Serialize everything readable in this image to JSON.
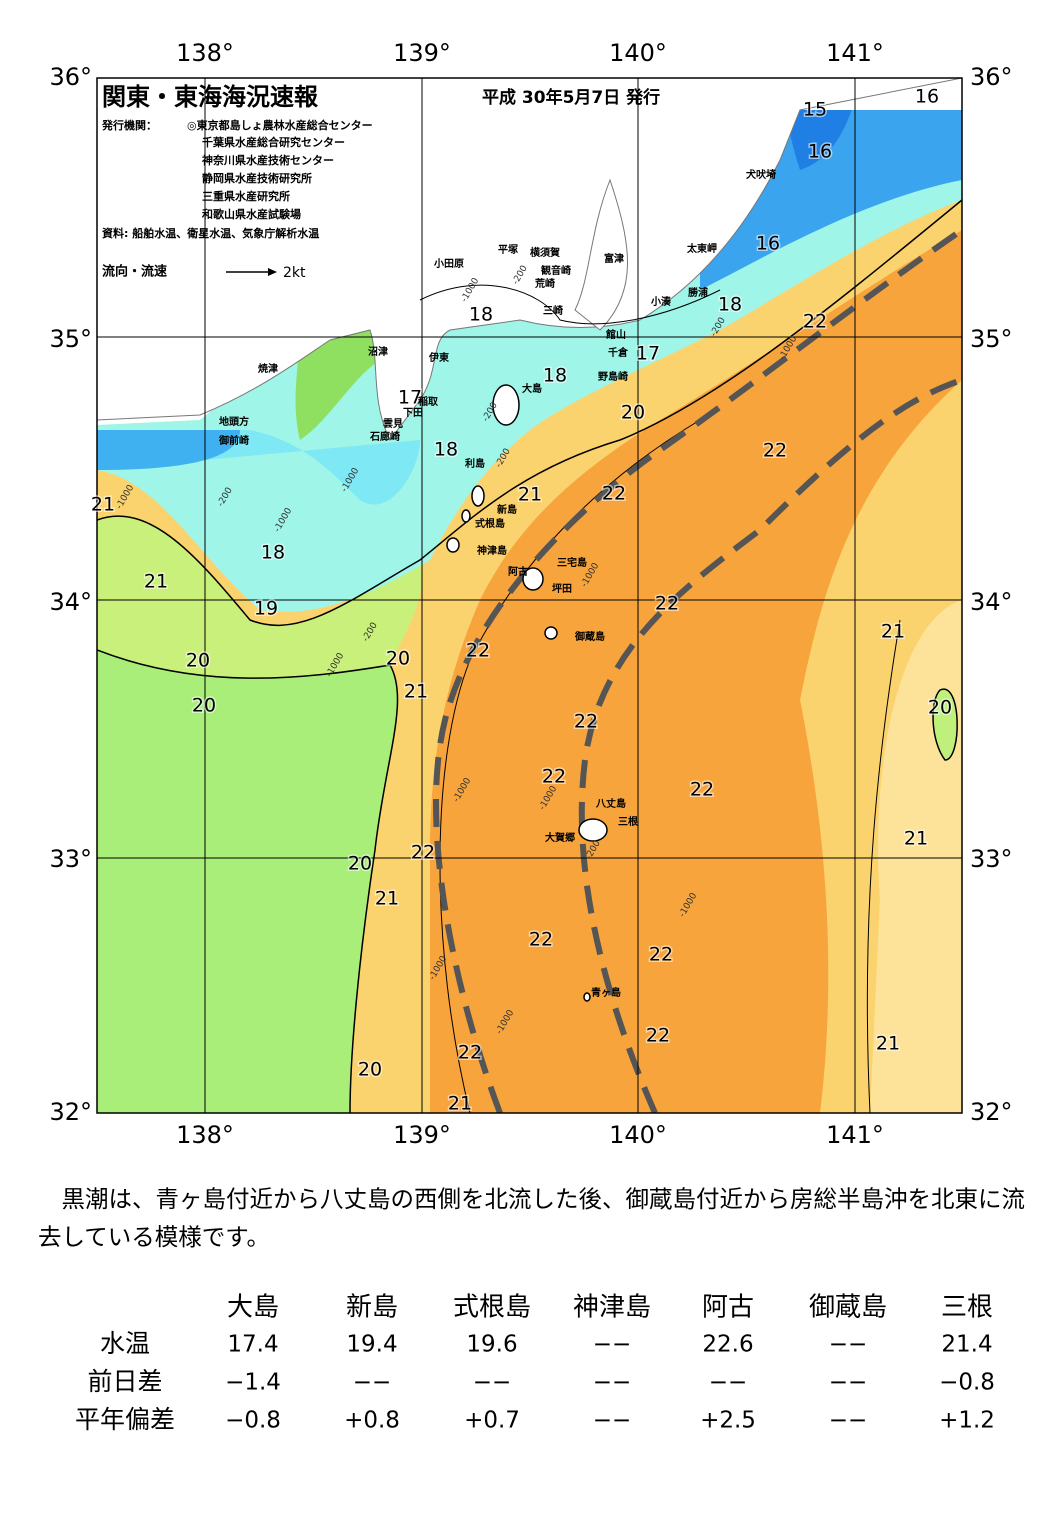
{
  "header": {
    "title": "関東・東海海況速報",
    "date": "平成 30年5月7日 発行",
    "issuer_label": "発行機関：",
    "issuers": [
      "◎東京都島しょ農林水産総合センター",
      "千葉県水産総合研究センター",
      "神奈川県水産技術センター",
      "静岡県水産技術研究所",
      "三重県水産研究所",
      "和歌山県水産試験場"
    ],
    "source": "資料: 船舶水温、衛星水温、気象庁解析水温",
    "legend": "流向・流速",
    "legend_scale": "2kt"
  },
  "map": {
    "lon_labels": [
      "138°",
      "139°",
      "140°",
      "141°"
    ],
    "lat_labels": [
      "36°",
      "35°",
      "34°",
      "33°",
      "32°"
    ],
    "places": [
      "小田原",
      "平塚",
      "横須賀",
      "富津",
      "観音崎",
      "荒崎",
      "三崎",
      "館山",
      "千倉",
      "野島崎",
      "太東岬",
      "勝浦",
      "小湊",
      "犬吠埼",
      "沼津",
      "伊東",
      "焼津",
      "稲取",
      "下田",
      "雲見",
      "石廊崎",
      "地頭方",
      "御前崎",
      "大島",
      "利島",
      "新島",
      "式根島",
      "神津島",
      "三宅島",
      "阿古",
      "坪田",
      "御蔵島",
      "八丈島",
      "三根",
      "大賀郷",
      "青ヶ島"
    ],
    "contour_labels": [
      15,
      16,
      16,
      16,
      18,
      22,
      17,
      18,
      20,
      22,
      18,
      17,
      18,
      21,
      22,
      21,
      18,
      21,
      19,
      22,
      21,
      20,
      20,
      22,
      21,
      20,
      20,
      22,
      22,
      22,
      21,
      22,
      20,
      21,
      22,
      22,
      22,
      21,
      22,
      20,
      21
    ],
    "depth_labels": [
      -200,
      -1000,
      -200,
      -200,
      -1000,
      -200,
      -1000,
      -1000,
      -200,
      -1000,
      -1000,
      -1000,
      -1000,
      -200,
      -1000,
      -1000,
      -1000,
      -200,
      -1000
    ]
  },
  "summary": "黒潮は、青ヶ島付近から八丈島の西側を北流した後、御蔵島付近から房総半島沖を北東に流去している模様です。",
  "table": {
    "columns": [
      "大島",
      "新島",
      "式根島",
      "神津島",
      "阿古",
      "御蔵島",
      "三根"
    ],
    "rows": [
      {
        "label": "水温",
        "values": [
          "17.4",
          "19.4",
          "19.6",
          "−−",
          "22.6",
          "−−",
          "21.4"
        ]
      },
      {
        "label": "前日差",
        "values": [
          "−1.4",
          "−−",
          "−−",
          "−−",
          "−−",
          "−−",
          "−0.8"
        ]
      },
      {
        "label": "平年偏差",
        "values": [
          "−0.8",
          "+0.8",
          "+0.7",
          "−−",
          "+2.5",
          "−−",
          "+1.2"
        ]
      }
    ]
  }
}
